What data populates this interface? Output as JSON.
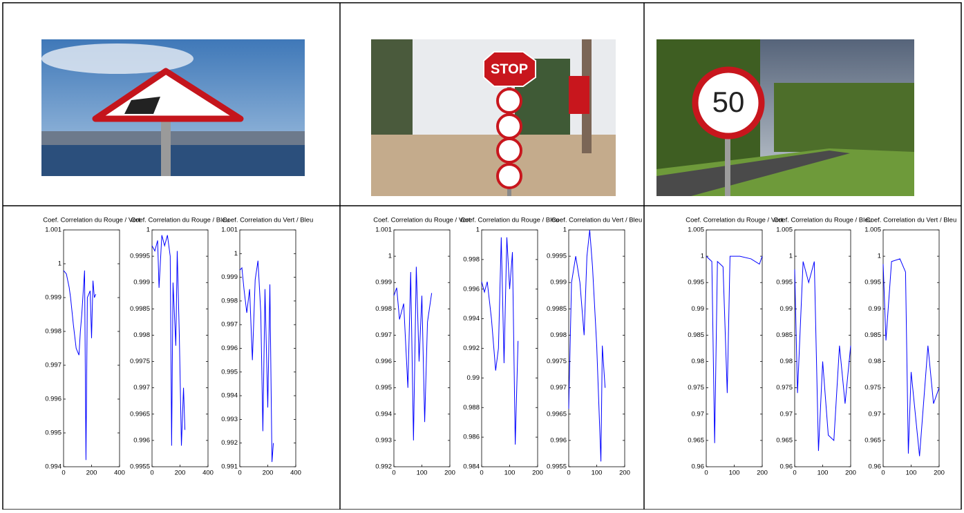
{
  "photo_signs": [
    "STOP",
    "50"
  ],
  "chart_data": [
    {
      "type": "line",
      "title": "Coef. Correlation du Rouge / Vert",
      "xlim": [
        0,
        400
      ],
      "xticks": [
        0,
        200,
        400
      ],
      "ylim": [
        0.994,
        1.001
      ],
      "yticks": [
        0.994,
        0.995,
        0.996,
        0.997,
        0.998,
        0.999,
        1,
        1.001
      ],
      "color": "#0000ff",
      "x": [
        0,
        20,
        40,
        50,
        70,
        90,
        110,
        120,
        130,
        150,
        160,
        170,
        190,
        200,
        210,
        220,
        230
      ],
      "values": [
        0.9998,
        0.9997,
        0.9993,
        0.999,
        0.9982,
        0.9975,
        0.9973,
        0.998,
        0.9985,
        0.9998,
        0.9942,
        0.999,
        0.9992,
        0.9978,
        0.9995,
        0.999,
        0.9991
      ]
    },
    {
      "type": "line",
      "title": "Coef. Correlation du Rouge / Bleu",
      "xlim": [
        0,
        400
      ],
      "xticks": [
        0,
        200,
        400
      ],
      "ylim": [
        0.9955,
        1
      ],
      "yticks": [
        0.9955,
        0.996,
        0.9965,
        0.997,
        0.9975,
        0.998,
        0.9985,
        0.999,
        0.9995,
        1
      ],
      "color": "#0000ff",
      "x": [
        0,
        20,
        40,
        50,
        70,
        90,
        110,
        130,
        140,
        150,
        170,
        180,
        195,
        210,
        225,
        235
      ],
      "values": [
        0.9997,
        0.9996,
        0.9998,
        0.9989,
        0.9999,
        0.9997,
        0.9999,
        0.9995,
        0.9959,
        0.999,
        0.9978,
        0.9996,
        0.998,
        0.9959,
        0.997,
        0.9962
      ]
    },
    {
      "type": "line",
      "title": "Coef. Correlation du Vert / Bleu",
      "xlim": [
        0,
        400
      ],
      "xticks": [
        0,
        200,
        400
      ],
      "ylim": [
        0.991,
        1.001
      ],
      "yticks": [
        0.991,
        0.992,
        0.993,
        0.994,
        0.995,
        0.996,
        0.997,
        0.998,
        0.999,
        1,
        1.001
      ],
      "color": "#0000ff",
      "x": [
        0,
        15,
        30,
        50,
        70,
        90,
        110,
        130,
        150,
        165,
        180,
        200,
        215,
        230,
        240
      ],
      "values": [
        0.9993,
        0.9994,
        0.9985,
        0.9975,
        0.9985,
        0.9955,
        0.9989,
        0.9997,
        0.9975,
        0.9925,
        0.9985,
        0.9935,
        0.9987,
        0.9912,
        0.992
      ]
    },
    {
      "type": "line",
      "title": "Coef. Correlation du Rouge / Vert",
      "xlim": [
        0,
        200
      ],
      "xticks": [
        0,
        100,
        200
      ],
      "ylim": [
        0.992,
        1.001
      ],
      "yticks": [
        0.992,
        0.993,
        0.994,
        0.995,
        0.996,
        0.997,
        0.998,
        0.999,
        1,
        1.001
      ],
      "color": "#0000ff",
      "x": [
        0,
        10,
        20,
        35,
        50,
        60,
        70,
        80,
        90,
        100,
        110,
        120,
        135
      ],
      "values": [
        0.9985,
        0.9988,
        0.9976,
        0.9982,
        0.995,
        0.9994,
        0.993,
        0.9996,
        0.996,
        0.9985,
        0.9937,
        0.9975,
        0.9986
      ]
    },
    {
      "type": "line",
      "title": "Coef. Correlation du Rouge / Bleu",
      "xlim": [
        0,
        200
      ],
      "xticks": [
        0,
        100,
        200
      ],
      "ylim": [
        0.984,
        1
      ],
      "yticks": [
        0.984,
        0.986,
        0.988,
        0.99,
        0.992,
        0.994,
        0.996,
        0.998,
        1
      ],
      "color": "#0000ff",
      "x": [
        0,
        10,
        20,
        35,
        50,
        60,
        70,
        80,
        90,
        100,
        110,
        120,
        130
      ],
      "values": [
        0.9965,
        0.9958,
        0.9965,
        0.994,
        0.9905,
        0.992,
        0.9995,
        0.991,
        0.9995,
        0.996,
        0.9985,
        0.9855,
        0.9925
      ]
    },
    {
      "type": "line",
      "title": "Coef. Correlation du Vert / Bleu",
      "xlim": [
        0,
        200
      ],
      "xticks": [
        0,
        100,
        200
      ],
      "ylim": [
        0.9955,
        1
      ],
      "yticks": [
        0.9955,
        0.996,
        0.9965,
        0.997,
        0.9975,
        0.998,
        0.9985,
        0.999,
        0.9995,
        1
      ],
      "color": "#0000ff",
      "x": [
        0,
        10,
        25,
        40,
        55,
        65,
        75,
        85,
        100,
        115,
        120,
        130
      ],
      "values": [
        0.9966,
        0.999,
        0.9995,
        0.999,
        0.998,
        0.9995,
        1,
        0.9993,
        0.9978,
        0.9956,
        0.9978,
        0.997
      ]
    },
    {
      "type": "line",
      "title": "Coef. Correlation du Rouge / Vert",
      "xlim": [
        0,
        200
      ],
      "xticks": [
        0,
        100,
        200
      ],
      "ylim": [
        0.96,
        1.005
      ],
      "yticks": [
        0.96,
        0.965,
        0.97,
        0.975,
        0.98,
        0.985,
        0.99,
        0.995,
        1,
        1.005
      ],
      "color": "#0000ff",
      "x": [
        0,
        20,
        30,
        40,
        60,
        75,
        85,
        120,
        160,
        190,
        200
      ],
      "values": [
        1,
        0.999,
        0.9645,
        0.999,
        0.998,
        0.974,
        1,
        1,
        0.9995,
        0.9985,
        1
      ]
    },
    {
      "type": "line",
      "title": "Coef. Correlation du Rouge / Bleu",
      "xlim": [
        0,
        200
      ],
      "xticks": [
        0,
        100,
        200
      ],
      "ylim": [
        0.96,
        1.005
      ],
      "yticks": [
        0.96,
        0.965,
        0.97,
        0.975,
        0.98,
        0.985,
        0.99,
        0.995,
        1,
        1.005
      ],
      "color": "#0000ff",
      "x": [
        0,
        10,
        30,
        50,
        70,
        85,
        100,
        120,
        140,
        160,
        180,
        200
      ],
      "values": [
        0.9975,
        0.974,
        0.999,
        0.995,
        0.999,
        0.963,
        0.98,
        0.966,
        0.965,
        0.983,
        0.972,
        0.983
      ]
    },
    {
      "type": "line",
      "title": "Coef. Correlation du Vert / Bleu",
      "xlim": [
        0,
        200
      ],
      "xticks": [
        0,
        100,
        200
      ],
      "ylim": [
        0.96,
        1.005
      ],
      "yticks": [
        0.96,
        0.965,
        0.97,
        0.975,
        0.98,
        0.985,
        0.99,
        0.995,
        1,
        1.005
      ],
      "color": "#0000ff",
      "x": [
        0,
        10,
        30,
        60,
        80,
        90,
        100,
        130,
        140,
        160,
        180,
        200
      ],
      "values": [
        0.9985,
        0.984,
        0.999,
        0.9995,
        0.997,
        0.9625,
        0.978,
        0.962,
        0.969,
        0.983,
        0.972,
        0.975
      ]
    }
  ]
}
